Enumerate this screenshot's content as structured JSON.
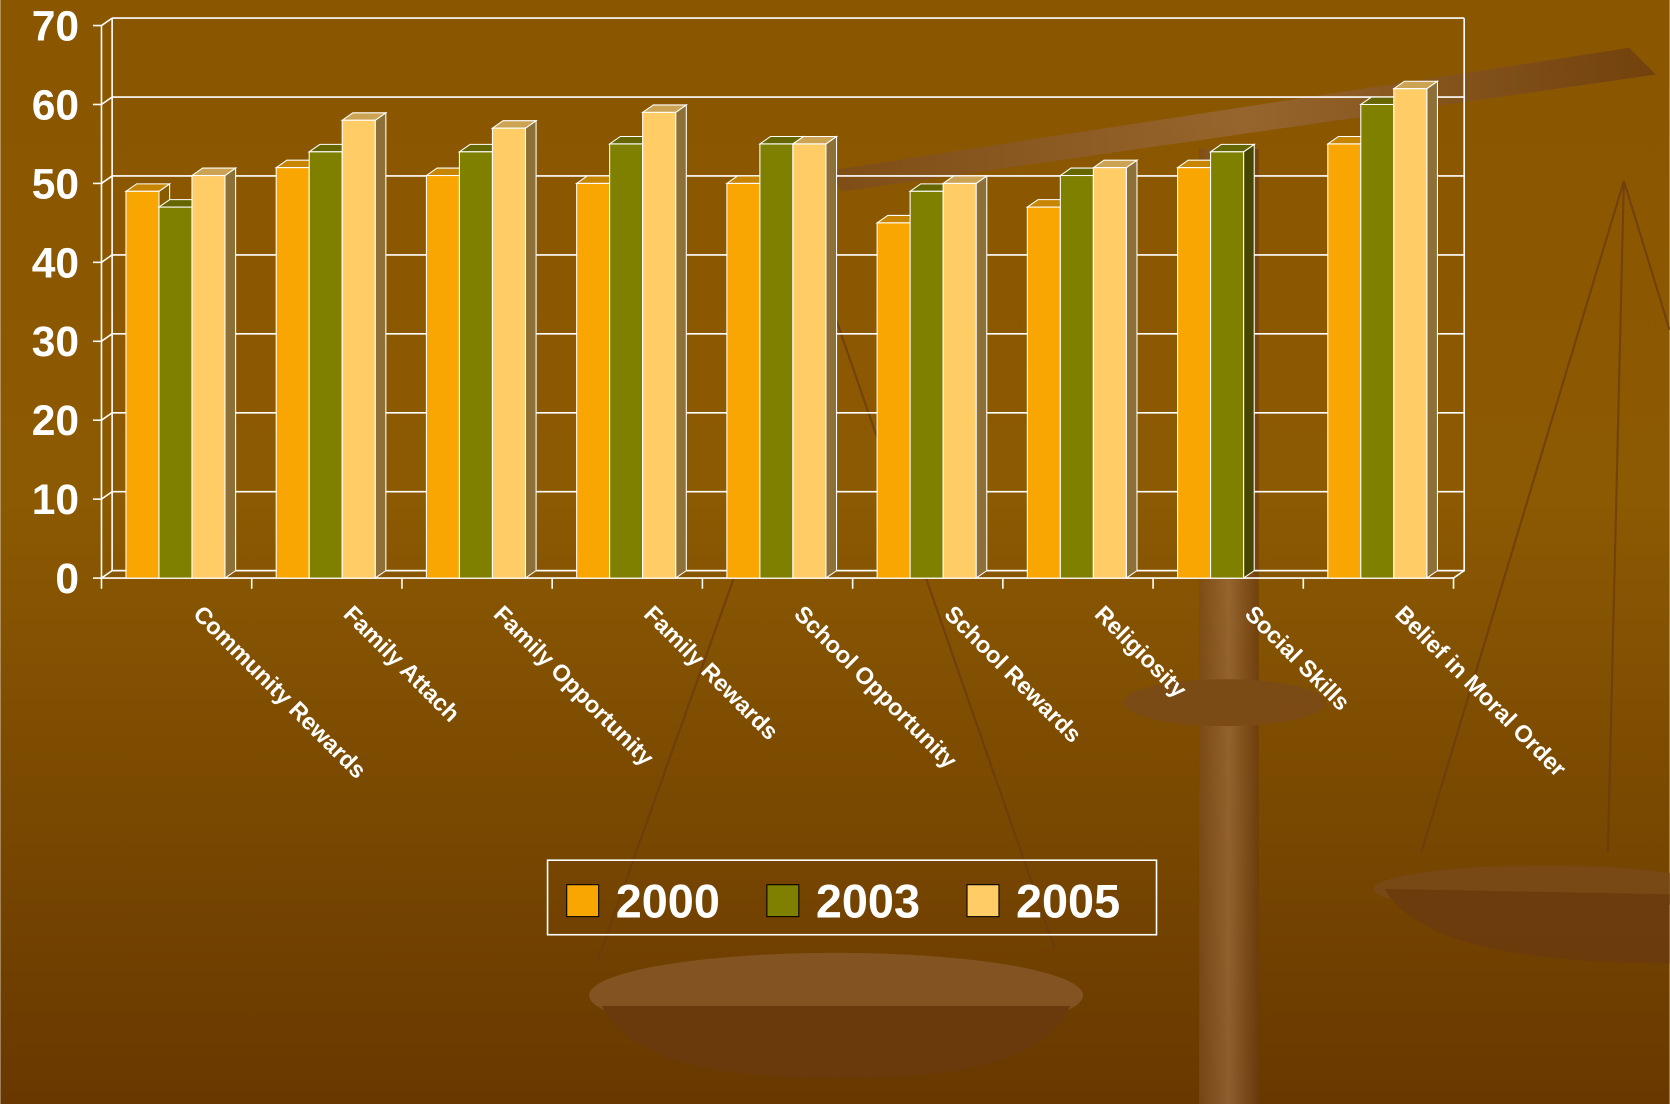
{
  "chart_data": {
    "type": "bar",
    "categories": [
      "Community Rewards",
      "Family Attach",
      "Family Opportunity",
      "Family Rewards",
      "School Opportunity",
      "School Rewards",
      "Religiosity",
      "Social Skills",
      "Belief in Moral Order"
    ],
    "series": [
      {
        "name": "2000",
        "color": "#f9a602",
        "values": [
          49,
          52,
          51,
          50,
          50,
          45,
          47,
          52,
          55
        ]
      },
      {
        "name": "2003",
        "color": "#7f7f00",
        "values": [
          47,
          54,
          54,
          55,
          55,
          49,
          51,
          54,
          60
        ]
      },
      {
        "name": "2005",
        "color": "#ffcc66",
        "values": [
          51,
          58,
          57,
          59,
          55,
          50,
          52,
          null,
          62
        ]
      }
    ],
    "ylim": [
      0,
      70
    ],
    "yticks": [
      0,
      10,
      20,
      30,
      40,
      50,
      60,
      70
    ],
    "grid": true,
    "legend": "bottom"
  }
}
